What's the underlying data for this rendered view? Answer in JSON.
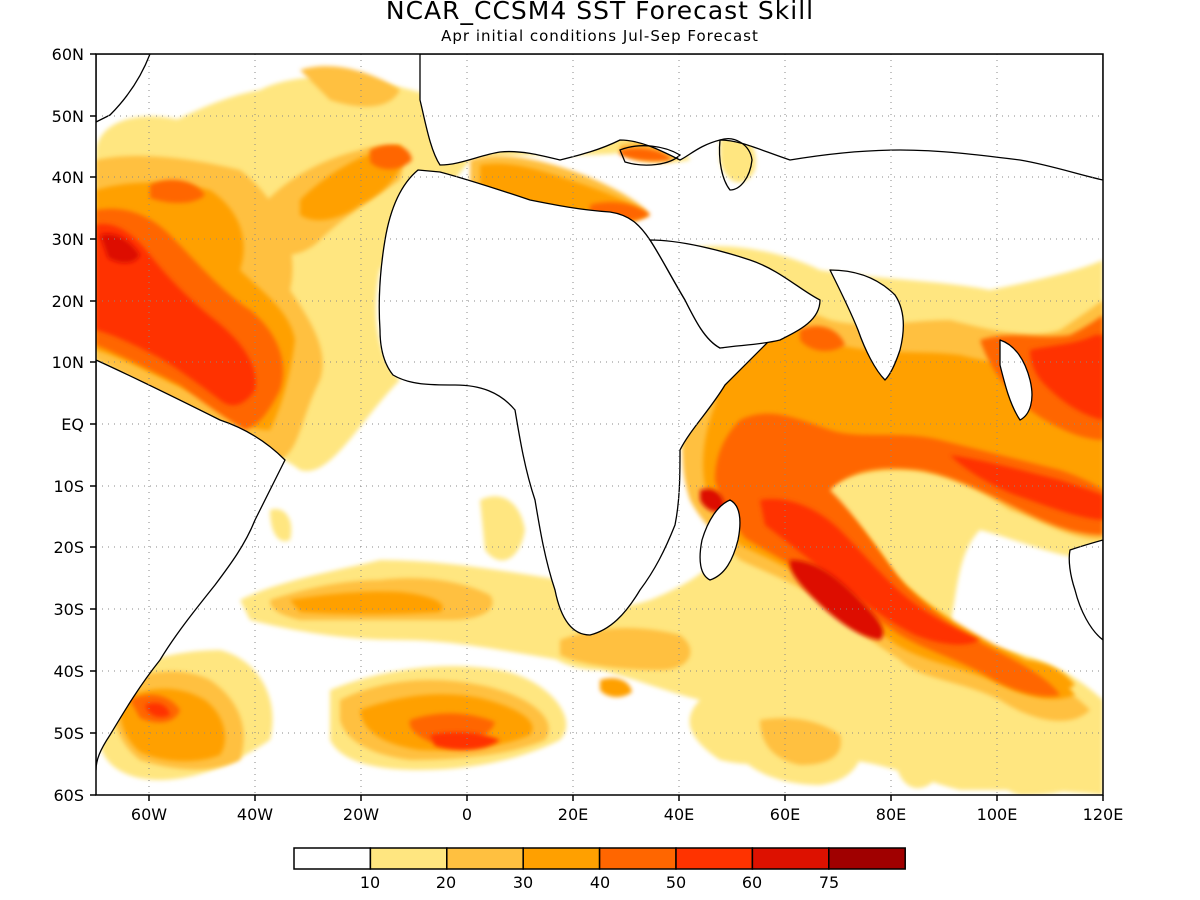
{
  "title": "NCAR_CCSM4 SST Forecast Skill",
  "subtitle": "Apr initial conditions  Jul-Sep Forecast",
  "map": {
    "lon_range": [
      -70,
      120
    ],
    "lat_range": [
      -60,
      60
    ],
    "lat_ticks": [
      "60N",
      "50N",
      "40N",
      "30N",
      "20N",
      "10N",
      "EQ",
      "10S",
      "20S",
      "30S",
      "40S",
      "50S",
      "60S"
    ],
    "lon_ticks": [
      "60W",
      "40W",
      "20W",
      "0",
      "20E",
      "40E",
      "60E",
      "80E",
      "100E",
      "120E"
    ],
    "grid": "dotted"
  },
  "colorbar": {
    "labels": [
      "10",
      "20",
      "30",
      "40",
      "50",
      "60",
      "75"
    ],
    "colors": [
      "#ffffff",
      "#ffe680",
      "#ffc040",
      "#ffa000",
      "#ff6600",
      "#ff3300",
      "#dd1100",
      "#a00000"
    ]
  }
}
